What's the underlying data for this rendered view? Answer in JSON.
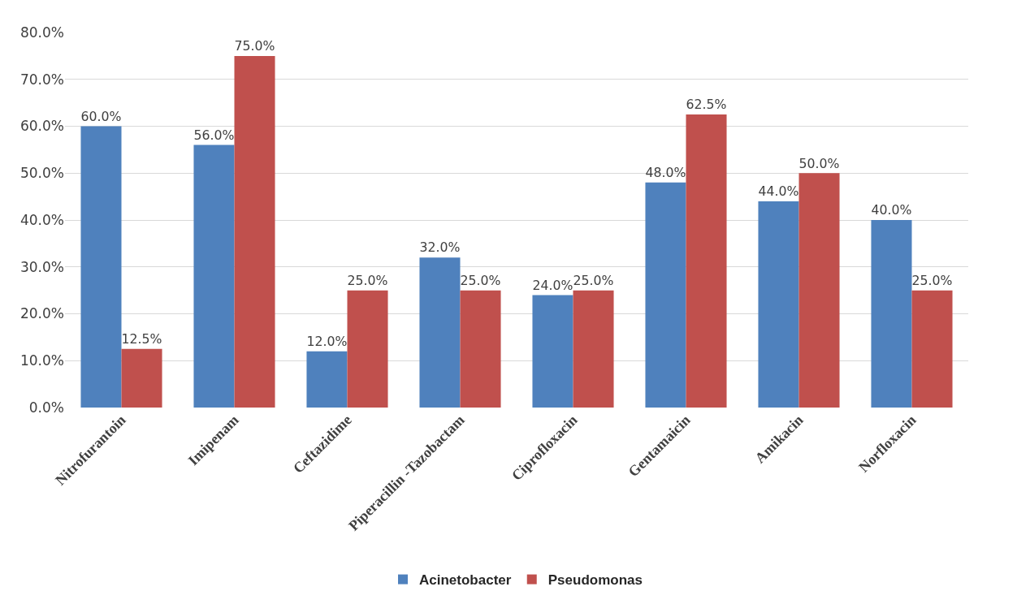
{
  "chart_data": {
    "type": "bar",
    "categories": [
      "Nitrofurantoin",
      "Imipenam",
      "Ceftazidime",
      "Piperacillin -Tazobactam",
      "Ciprofloxacin",
      "Gentamaicin",
      "Amikacin",
      "Norfloxacin"
    ],
    "series": [
      {
        "name": "Acinetobacter",
        "color": "#4f81bd",
        "values": [
          60,
          56,
          12,
          32,
          24,
          48,
          44,
          40
        ],
        "value_labels": [
          "60.0%",
          "56.0%",
          "12.0%",
          "32.0%",
          "24.0%",
          "48.0%",
          "44.0%",
          "40.0%"
        ]
      },
      {
        "name": "Pseudomonas",
        "color": "#c0504d",
        "values": [
          12.5,
          75,
          25,
          25,
          25,
          62.5,
          50,
          25
        ],
        "value_labels": [
          "12.5%",
          "75.0%",
          "25.0%",
          "25.0%",
          "25.0%",
          "62.5%",
          "50.0%",
          "25.0%"
        ]
      }
    ],
    "ylim": [
      0,
      80
    ],
    "yticks": [
      {
        "value": 0,
        "label": "0.0%"
      },
      {
        "value": 10,
        "label": "10.0%"
      },
      {
        "value": 20,
        "label": "20.0%"
      },
      {
        "value": 30,
        "label": "30.0%"
      },
      {
        "value": 40,
        "label": "40.0%"
      },
      {
        "value": 50,
        "label": "50.0%"
      },
      {
        "value": 60,
        "label": "60.0%"
      },
      {
        "value": 70,
        "label": "70.0%"
      },
      {
        "value": 80,
        "label": "80.0%"
      }
    ],
    "grid": "y",
    "legend": "bottom"
  }
}
